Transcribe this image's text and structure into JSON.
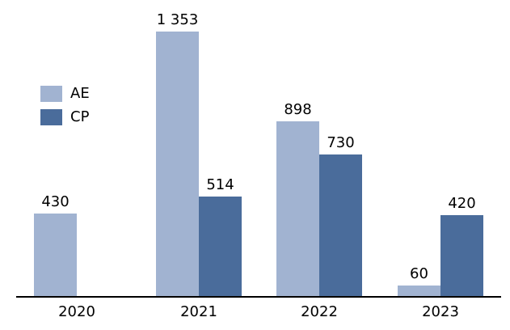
{
  "chart_data": {
    "type": "bar",
    "categories": [
      "2020",
      "2021",
      "2022",
      "2023"
    ],
    "series": [
      {
        "name": "AE",
        "color": "#A1B3D1",
        "values": [
          430,
          1353,
          898,
          60
        ]
      },
      {
        "name": "CP",
        "color": "#4A6C9B",
        "values": [
          null,
          514,
          730,
          420
        ]
      }
    ],
    "value_labels": [
      [
        "430",
        "1 353",
        "898",
        "60"
      ],
      [
        null,
        "514",
        "730",
        "420"
      ]
    ],
    "title": "",
    "xlabel": "",
    "ylabel": "",
    "ylim": [
      0,
      1400
    ],
    "grid": false,
    "legend_position": "upper-left-inside",
    "number_format": "space thousands separator"
  },
  "legend": {
    "items": [
      {
        "label": "AE",
        "color": "#A1B3D1"
      },
      {
        "label": "CP",
        "color": "#4A6C9B"
      }
    ]
  },
  "colors": {
    "ae_bar": "#A1B3D1",
    "cp_bar": "#4A6C9B",
    "axis_line": "#000000",
    "label_text": "#000000",
    "background": "#FFFFFF"
  }
}
